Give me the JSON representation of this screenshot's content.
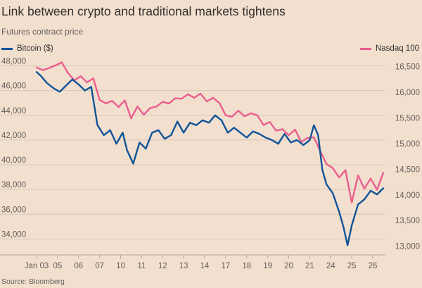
{
  "title": "Link between crypto and traditional markets tightens",
  "subtitle": "Futures contract price",
  "source": "Source: Bloomberg",
  "colors": {
    "background": "#f2dfce",
    "bitcoin": "#0f5499",
    "nasdaq": "#eb5e8d",
    "grid": "#d8c7b8"
  },
  "chart_data": {
    "type": "line",
    "title": "Link between crypto and traditional markets tightens",
    "subtitle": "Futures contract price",
    "x_tick_labels": [
      "Jan 03",
      "05",
      "06",
      "07",
      "10",
      "11",
      "12",
      "13",
      "14",
      "17",
      "18",
      "19",
      "20",
      "21",
      "24",
      "25",
      "26"
    ],
    "left_axis": {
      "ticks": [
        34000,
        36000,
        38000,
        40000,
        42000,
        44000,
        46000,
        48000
      ],
      "ylim": [
        33000,
        48200
      ]
    },
    "right_axis": {
      "ticks": [
        13000,
        13500,
        14000,
        14500,
        15000,
        15500,
        16000,
        16500
      ],
      "ylim": [
        12900,
        16560
      ]
    },
    "grid": true,
    "legend": "top",
    "series": [
      {
        "name": "Bitcoin ($)",
        "axis": "left",
        "x": [
          0,
          0.2,
          0.5,
          0.8,
          1.1,
          1.4,
          1.7,
          2.0,
          2.3,
          2.6,
          2.9,
          3.2,
          3.5,
          3.8,
          4.1,
          4.3,
          4.6,
          4.9,
          5.2,
          5.5,
          5.8,
          6.1,
          6.4,
          6.7,
          7.0,
          7.3,
          7.6,
          7.9,
          8.2,
          8.5,
          8.8,
          9.1,
          9.4,
          9.7,
          10.0,
          10.3,
          10.6,
          10.9,
          11.2,
          11.5,
          11.8,
          12.1,
          12.4,
          12.7,
          13.0,
          13.2,
          13.4,
          13.6,
          13.8,
          14.1,
          14.4,
          14.6,
          14.8,
          15.0,
          15.3,
          15.6,
          15.9,
          16.2,
          16.5
        ],
        "values": [
          47500,
          47200,
          46600,
          46200,
          45900,
          46400,
          46900,
          46500,
          46000,
          46300,
          43200,
          42400,
          42800,
          41700,
          42600,
          41200,
          40100,
          41800,
          41300,
          42600,
          42800,
          42100,
          42400,
          43500,
          42600,
          43400,
          43200,
          43600,
          43400,
          44000,
          43600,
          42600,
          43000,
          42600,
          42200,
          42700,
          42500,
          42200,
          42000,
          41700,
          42500,
          41800,
          42000,
          41600,
          42000,
          43200,
          42400,
          39600,
          38400,
          37700,
          36200,
          35000,
          33500,
          35100,
          36800,
          37200,
          37900,
          37600,
          38100
        ]
      },
      {
        "name": "Nasdaq 100",
        "axis": "right",
        "x": [
          0,
          0.3,
          0.6,
          0.9,
          1.2,
          1.5,
          1.8,
          2.1,
          2.4,
          2.7,
          3.0,
          3.3,
          3.6,
          3.9,
          4.2,
          4.5,
          4.8,
          5.1,
          5.4,
          5.7,
          6.0,
          6.3,
          6.6,
          6.9,
          7.2,
          7.5,
          7.8,
          8.1,
          8.4,
          8.7,
          9.0,
          9.3,
          9.6,
          9.9,
          10.2,
          10.5,
          10.8,
          11.1,
          11.4,
          11.7,
          12.0,
          12.3,
          12.6,
          12.9,
          13.2,
          13.5,
          13.8,
          14.1,
          14.4,
          14.7,
          15.0,
          15.3,
          15.6,
          15.9,
          16.2,
          16.5
        ],
        "values": [
          16480,
          16430,
          16470,
          16520,
          16580,
          16370,
          16230,
          16310,
          16190,
          16270,
          15850,
          15780,
          15830,
          15710,
          15840,
          15490,
          15720,
          15560,
          15690,
          15720,
          15810,
          15780,
          15880,
          15870,
          15960,
          15890,
          15970,
          15820,
          15890,
          15790,
          15550,
          15520,
          15640,
          15530,
          15590,
          15550,
          15360,
          15420,
          15250,
          15280,
          15160,
          15270,
          15030,
          15110,
          15120,
          14850,
          14600,
          14520,
          14340,
          14480,
          13850,
          14380,
          14120,
          14320,
          14100,
          14430
        ]
      }
    ]
  }
}
